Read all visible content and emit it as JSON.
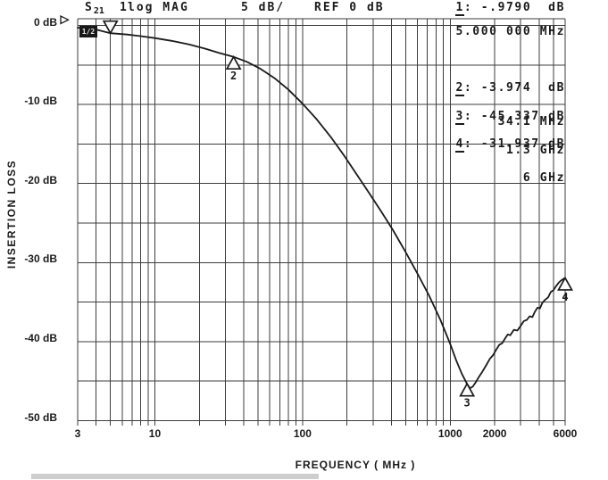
{
  "header": {
    "s_param": "S",
    "s_param_sub": "21",
    "marker_number": "1",
    "format_label": "log MAG",
    "scale_label": "5 dB/",
    "ref_label": "REF 0 dB",
    "marker1": {
      "num": "1",
      "rest": ": -.9790  dB",
      "frequency": "5.000 000 MHz"
    }
  },
  "status_badge": "1/2",
  "marker_table": [
    {
      "num": "2",
      "rest": ": -3.974  dB",
      "frequency": "34.1 MHz"
    },
    {
      "num": "3",
      "rest": ": -45.337 dB",
      "frequency": "1.3 GHz"
    },
    {
      "num": "4",
      "rest": ": -31.937 dB",
      "frequency": "6 GHz"
    }
  ],
  "axes": {
    "x_label": "FREQUENCY ( MHz )",
    "y_label": "INSERTION LOSS",
    "x_ticks": [
      {
        "label": "3",
        "f": 3
      },
      {
        "label": "10",
        "f": 10
      },
      {
        "label": "100",
        "f": 100
      },
      {
        "label": "1000",
        "f": 1000
      },
      {
        "label": "2000",
        "f": 2000
      },
      {
        "label": "6000",
        "f": 6000
      }
    ],
    "y_ticks": [
      {
        "label": "0 dB",
        "db": 0
      },
      {
        "label": "-10 dB",
        "db": -10
      },
      {
        "label": "-20 dB",
        "db": -20
      },
      {
        "label": "-30 dB",
        "db": -30
      },
      {
        "label": "-40 dB",
        "db": -40
      },
      {
        "label": "-50 dB",
        "db": -50
      }
    ]
  },
  "chart_data": {
    "type": "line",
    "title": "S21 log MAG 5 dB/ REF 0 dB",
    "xlabel": "FREQUENCY ( MHz )",
    "ylabel": "INSERTION LOSS",
    "x_axis": {
      "scale": "log",
      "min_mhz": 3,
      "max_mhz": 6000,
      "unit": "MHz"
    },
    "y_axis": {
      "max_db": 0,
      "min_db": -50,
      "db_per_div": 5,
      "ref_db": 0,
      "grid": true
    },
    "series": [
      {
        "name": "S21 insertion loss",
        "points_mhz_db": [
          [
            3,
            -0.28
          ],
          [
            4,
            -0.52
          ],
          [
            5,
            -0.979
          ],
          [
            6.5,
            -1.15
          ],
          [
            8,
            -1.35
          ],
          [
            10,
            -1.6
          ],
          [
            13,
            -1.95
          ],
          [
            17,
            -2.4
          ],
          [
            22,
            -2.95
          ],
          [
            27,
            -3.45
          ],
          [
            34.1,
            -3.974
          ],
          [
            42,
            -4.6
          ],
          [
            52,
            -5.5
          ],
          [
            65,
            -6.7
          ],
          [
            80,
            -8.1
          ],
          [
            100,
            -9.9
          ],
          [
            125,
            -11.9
          ],
          [
            155,
            -14.1
          ],
          [
            190,
            -16.4
          ],
          [
            230,
            -18.7
          ],
          [
            280,
            -21.1
          ],
          [
            340,
            -23.5
          ],
          [
            410,
            -25.9
          ],
          [
            500,
            -28.7
          ],
          [
            600,
            -31.4
          ],
          [
            720,
            -34.2
          ],
          [
            860,
            -37.3
          ],
          [
            1000,
            -40.3
          ],
          [
            1100,
            -42.4
          ],
          [
            1200,
            -44.1
          ],
          [
            1300,
            -45.337
          ],
          [
            1360,
            -45.9
          ],
          [
            1420,
            -45.7
          ],
          [
            1480,
            -45.2
          ],
          [
            1560,
            -44.5
          ],
          [
            1650,
            -43.8
          ],
          [
            1750,
            -43.0
          ],
          [
            1850,
            -42.2
          ],
          [
            1950,
            -41.7
          ],
          [
            2050,
            -41.0
          ],
          [
            2150,
            -40.4
          ],
          [
            2250,
            -40.2
          ],
          [
            2350,
            -39.6
          ],
          [
            2450,
            -39.1
          ],
          [
            2550,
            -39.2
          ],
          [
            2700,
            -38.5
          ],
          [
            2850,
            -38.6
          ],
          [
            3000,
            -38.0
          ],
          [
            3150,
            -37.4
          ],
          [
            3300,
            -37.25
          ],
          [
            3450,
            -36.8
          ],
          [
            3600,
            -36.9
          ],
          [
            3750,
            -36.2
          ],
          [
            3900,
            -35.7
          ],
          [
            4050,
            -35.8
          ],
          [
            4200,
            -35.1
          ],
          [
            4400,
            -34.7
          ],
          [
            4600,
            -34.4
          ],
          [
            4800,
            -33.7
          ],
          [
            5000,
            -33.5
          ],
          [
            5200,
            -33.0
          ],
          [
            5400,
            -32.6
          ],
          [
            5600,
            -32.3
          ],
          [
            5800,
            -32.1
          ],
          [
            6000,
            -31.937
          ]
        ]
      }
    ],
    "markers": [
      {
        "n": "1",
        "freq_mhz": 5,
        "value_db": -0.979,
        "direction": "down",
        "label_shown_in_header": true
      },
      {
        "n": "2",
        "freq_mhz": 34.1,
        "value_db": -3.974,
        "direction": "up"
      },
      {
        "n": "3",
        "freq_mhz": 1300,
        "value_db": -45.337,
        "direction": "up"
      },
      {
        "n": "4",
        "freq_mhz": 6000,
        "value_db": -31.937,
        "direction": "up"
      }
    ]
  },
  "colors": {
    "ink": "#1a1a1a",
    "grid": "#3d3d3d",
    "background": "#ffffff",
    "scan_bar": "#b3b3b3"
  }
}
